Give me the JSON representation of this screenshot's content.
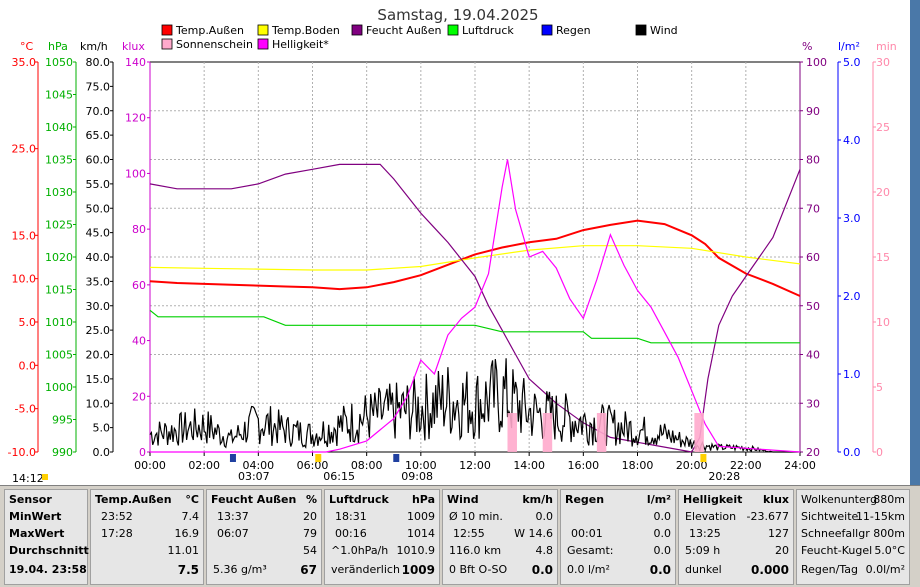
{
  "title": "Samstag, 19.04.2025",
  "axes": {
    "left_units": [
      "°C",
      "hPa",
      "km/h",
      "klux"
    ],
    "right_units": [
      "%",
      "l/m²",
      "min"
    ],
    "temp": {
      "unit": "°C",
      "color": "#ff0000",
      "ticks": [
        "35.0",
        "25.0",
        "15.0",
        "10.0",
        "5.0",
        "0.0",
        "-5.0",
        "-10.0"
      ],
      "values": [
        35,
        25,
        15,
        10,
        5,
        0,
        -5,
        -10
      ],
      "min": -10,
      "max": 35
    },
    "hpa": {
      "unit": "hPa",
      "color": "#00b000",
      "ticks": [
        "1050",
        "1045",
        "1040",
        "1035",
        "1030",
        "1025",
        "1020",
        "1015",
        "1010",
        "1005",
        "1000",
        "995",
        "990"
      ],
      "min": 990,
      "max": 1050
    },
    "kmh": {
      "unit": "km/h",
      "color": "#000000",
      "ticks": [
        "80.0",
        "75.0",
        "70.0",
        "65.0",
        "60.0",
        "55.0",
        "50.0",
        "45.0",
        "40.0",
        "35.0",
        "30.0",
        "25.0",
        "20.0",
        "15.0",
        "10.0",
        "5.0",
        "0.0"
      ],
      "min": 0,
      "max": 80
    },
    "klux": {
      "unit": "klux",
      "color": "#cc00cc",
      "ticks": [
        "140",
        "120",
        "100",
        "80",
        "60",
        "40",
        "20",
        "0"
      ],
      "min": 0,
      "max": 140
    },
    "pct": {
      "unit": "%",
      "color": "#800080",
      "ticks": [
        "100",
        "90",
        "80",
        "70",
        "60",
        "50",
        "40",
        "30",
        "20"
      ],
      "min": 20,
      "max": 100
    },
    "lm2": {
      "unit": "l/m²",
      "color": "#0000ff",
      "ticks": [
        "5.0",
        "4.0",
        "3.0",
        "2.0",
        "1.0",
        "0.0"
      ],
      "min": 0,
      "max": 5
    },
    "min": {
      "unit": "min",
      "color": "#ff88aa",
      "ticks": [
        "30",
        "25",
        "20",
        "15",
        "10",
        "5",
        "0"
      ],
      "min": 0,
      "max": 30
    },
    "x_ticks": [
      "00:00",
      "02:00",
      "04:00",
      "06:00",
      "08:00",
      "10:00",
      "12:00",
      "14:00",
      "16:00",
      "18:00",
      "20:00",
      "22:00",
      "24:00"
    ]
  },
  "sun_markers": {
    "moonrise": "03:07",
    "sunrise": "06:15",
    "moonset": "09:08",
    "sunset": "20:28",
    "left_time": "14:12"
  },
  "legend": [
    {
      "label": "Temp.Außen",
      "color": "#ff0000"
    },
    {
      "label": "Temp.Boden",
      "color": "#ffff00"
    },
    {
      "label": "Feucht Außen",
      "color": "#800080"
    },
    {
      "label": "Luftdruck",
      "color": "#00ff00"
    },
    {
      "label": "Regen",
      "color": "#0000ff"
    },
    {
      "label": "Wind",
      "color": "#000000"
    },
    {
      "label": "Sonnenschein",
      "color": "#ffaacc"
    },
    {
      "label": "Helligkeit*",
      "color": "#ff00ff"
    }
  ],
  "chart_data": {
    "type": "line",
    "title": "Samstag, 19.04.2025",
    "x_unit": "hours",
    "xlim": [
      0,
      24
    ],
    "series": [
      {
        "name": "Temp.Außen",
        "axis": "temp",
        "color": "#ff0000",
        "x": [
          0,
          1,
          2,
          3,
          4,
          5,
          6,
          7,
          8,
          9,
          10,
          11,
          12,
          13,
          14,
          15,
          16,
          17,
          18,
          19,
          20,
          20.5,
          21,
          22,
          23,
          24
        ],
        "y": [
          9.7,
          9.5,
          9.4,
          9.3,
          9.2,
          9.1,
          9.0,
          8.8,
          9.0,
          9.6,
          10.4,
          11.6,
          12.8,
          13.6,
          14.2,
          14.6,
          15.6,
          16.2,
          16.7,
          16.3,
          15.0,
          14.0,
          12.4,
          10.6,
          9.4,
          8.0
        ]
      },
      {
        "name": "Temp.Boden",
        "axis": "temp",
        "color": "#ffff00",
        "x": [
          0,
          2,
          4,
          6,
          8,
          10,
          12,
          14,
          16,
          18,
          20,
          22,
          24
        ],
        "y": [
          11.3,
          11.2,
          11.1,
          11.0,
          11.0,
          11.4,
          12.4,
          13.3,
          13.8,
          13.8,
          13.5,
          12.5,
          11.7
        ]
      },
      {
        "name": "Feucht Außen",
        "axis": "pct",
        "color": "#800080",
        "x": [
          0,
          1,
          2,
          3,
          4,
          5,
          6,
          7,
          8,
          8.5,
          9,
          10,
          10.5,
          11,
          12,
          12.5,
          13,
          13.5,
          14,
          15,
          16,
          17,
          18,
          19,
          20,
          20.3,
          20.6,
          21,
          21.5,
          22,
          22.5,
          23,
          24
        ],
        "y": [
          75,
          74,
          74,
          74,
          75,
          77,
          78,
          79,
          79,
          79,
          76,
          69,
          66,
          63,
          56,
          50,
          45,
          40,
          35,
          30,
          26,
          23,
          22,
          21,
          20,
          23,
          35,
          46,
          52,
          56,
          60,
          64,
          78
        ]
      },
      {
        "name": "Luftdruck",
        "axis": "hpa",
        "color": "#00d000",
        "x": [
          0,
          0.3,
          4.2,
          5,
          7,
          9,
          12,
          13,
          14,
          15,
          16,
          16.3,
          18,
          18.5,
          20,
          22,
          24
        ],
        "y": [
          1011.8,
          1010.8,
          1010.8,
          1009.5,
          1009.5,
          1009.5,
          1009.5,
          1008.5,
          1008.5,
          1008.5,
          1008.5,
          1007.5,
          1007.5,
          1006.8,
          1006.8,
          1006.8,
          1006.8
        ]
      },
      {
        "name": "Wind",
        "axis": "kmh",
        "color": "#000000",
        "x": [
          0,
          1,
          2,
          3,
          4,
          5,
          6,
          7,
          8,
          9,
          10,
          11,
          12,
          13,
          14,
          15,
          16,
          17,
          18,
          19,
          20,
          21,
          22,
          23,
          24
        ],
        "y": [
          4,
          5,
          6,
          3,
          7,
          5,
          4,
          6,
          8,
          9,
          10,
          12,
          11,
          13,
          9,
          8,
          7,
          6,
          5,
          4,
          2,
          1,
          1,
          0,
          0
        ]
      },
      {
        "name": "Helligkeit*",
        "axis": "klux",
        "color": "#ff00ff",
        "x": [
          0,
          6.5,
          7,
          8,
          9,
          9.5,
          10,
          10.5,
          11,
          11.5,
          12,
          12.5,
          13,
          13.2,
          13.5,
          14,
          14.5,
          15,
          15.5,
          16,
          16.5,
          17,
          17.5,
          18,
          18.5,
          19,
          19.5,
          20,
          20.5,
          21,
          24
        ],
        "y": [
          0,
          0,
          1,
          4,
          12,
          20,
          33,
          28,
          42,
          48,
          52,
          64,
          95,
          105,
          87,
          70,
          72,
          66,
          55,
          48,
          62,
          78,
          67,
          58,
          52,
          43,
          34,
          22,
          10,
          2,
          0
        ]
      },
      {
        "name": "Sonnenschein",
        "axis": "min",
        "color": "#ffaacc",
        "type": "bar",
        "x": [
          13.2,
          14.5,
          16.5,
          20.1
        ],
        "y": [
          3,
          3,
          3,
          3
        ]
      }
    ],
    "summary_table": {
      "headers": [
        "Sensor",
        "Temp.Außen",
        "Feucht Außen",
        "Luftdruck",
        "Wind",
        "Regen",
        "Helligkeit"
      ],
      "units": [
        "°C",
        "%",
        "hPa",
        "km/h",
        "l/m²",
        "klux"
      ]
    }
  },
  "panel": {
    "sensor": {
      "title": "Sensor",
      "rows": [
        "MinWert",
        "MaxWert",
        "Durchschnitt",
        "19.04. 23:58"
      ]
    },
    "temp": {
      "title": "Temp.Außen",
      "unit": "°C",
      "rows": [
        [
          "23:52",
          "7.4"
        ],
        [
          "17:28",
          "16.9"
        ],
        [
          "",
          "11.01"
        ],
        [
          "",
          "7.5"
        ]
      ]
    },
    "feucht": {
      "title": "Feucht Außen",
      "unit": "%",
      "rows": [
        [
          "13:37",
          "20"
        ],
        [
          "06:07",
          "79"
        ],
        [
          "",
          "54"
        ],
        [
          "5.36 g/m³",
          "67"
        ]
      ]
    },
    "luft": {
      "title": "Luftdruck",
      "unit": "hPa",
      "rows": [
        [
          "18:31",
          "1009"
        ],
        [
          "00:16",
          "1014"
        ],
        [
          "^1.0hPa/h",
          "1010.9"
        ],
        [
          "veränderlich",
          "1009"
        ]
      ]
    },
    "wind": {
      "title": "Wind",
      "unit": "km/h",
      "rows": [
        [
          "Ø 10 min.",
          "0.0"
        ],
        [
          "12:55",
          "W 14.6"
        ],
        [
          "116.0 km",
          "4.8"
        ],
        [
          "0 Bft O-SO",
          "0.0"
        ]
      ]
    },
    "regen": {
      "title": "Regen",
      "unit": "l/m²",
      "rows": [
        [
          "",
          "0.0"
        ],
        [
          "00:01",
          "0.0"
        ],
        [
          "Gesamt:",
          "0.0"
        ],
        [
          "0.0 l/m²",
          "0.0"
        ]
      ]
    },
    "hell": {
      "title": "Helligkeit",
      "unit": "klux",
      "rows": [
        [
          "Elevation",
          "-23.677"
        ],
        [
          "13:25",
          "127"
        ],
        [
          "5:09 h",
          "20"
        ],
        [
          "dunkel",
          "0.000"
        ]
      ]
    },
    "extra": {
      "rows": [
        [
          "Wolkenunterg",
          "880m"
        ],
        [
          "Sichtweite",
          "11-15km"
        ],
        [
          "Schneefallgr",
          "800m"
        ],
        [
          "Feucht-Kugel",
          "5.0°C"
        ],
        [
          "Regen/Tag",
          "0.0l/m²"
        ]
      ]
    }
  }
}
